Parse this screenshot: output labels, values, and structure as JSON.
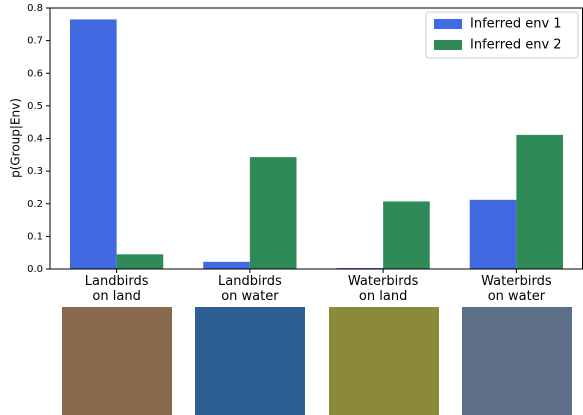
{
  "chart_data": {
    "type": "bar",
    "ylabel": "p(Group|Env)",
    "categories": [
      "Landbirds\non land",
      "Landbirds\non water",
      "Waterbirds\non land",
      "Waterbirds\non water"
    ],
    "series": [
      {
        "name": "Inferred env 1",
        "color": "#4169e1",
        "values": [
          0.765,
          0.022,
          0.003,
          0.212
        ]
      },
      {
        "name": "Inferred env 2",
        "color": "#2e8b57",
        "values": [
          0.045,
          0.343,
          0.207,
          0.411
        ]
      }
    ],
    "ylim": [
      0,
      0.8
    ],
    "yticks": [
      {
        "value": 0,
        "label": "0.0"
      },
      0.1,
      0.2,
      0.3,
      0.4,
      0.5,
      0.6,
      0.7,
      0.8
    ],
    "legend": "upper right"
  }
}
